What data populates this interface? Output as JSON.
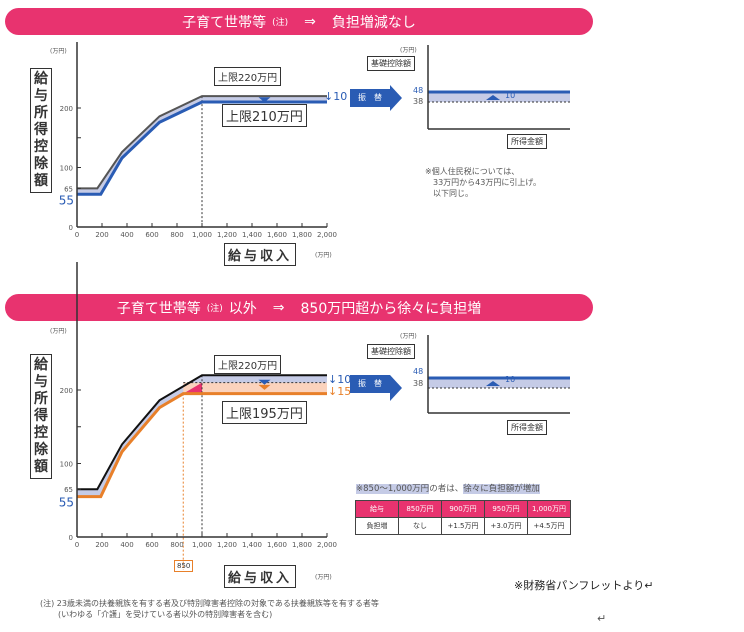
{
  "banner1": {
    "title": "子育て世帯等",
    "note": "(注)",
    "arrow": "⇒",
    "result": "負担増減なし"
  },
  "banner2": {
    "title": "子育て世帯等",
    "note": "(注)",
    "suffix": "以外",
    "arrow": "⇒",
    "result": "850万円超から徐々に負担増"
  },
  "common": {
    "y_label": "給与所得控除額",
    "x_label": "給与収入",
    "unit": "(万円)",
    "swap": "振　替",
    "basic_label": "基礎控除額",
    "income_label": "所得金額",
    "basic_new": "48",
    "basic_old": "38",
    "basic_diff": "10"
  },
  "chart_data": [
    {
      "type": "line",
      "title": "子育て世帯等",
      "xlabel": "給与収入",
      "ylabel": "給与所得控除額",
      "xlim": [
        0,
        2000
      ],
      "ylim": [
        0,
        250
      ],
      "x_ticks": [
        "0",
        "200",
        "400",
        "600",
        "800",
        "1,000",
        "1,200",
        "1,400",
        "1,600",
        "1,800",
        "2,000"
      ],
      "y_ticks": [
        "0",
        "65",
        "100",
        "200"
      ],
      "y_new_start": "55",
      "series": [
        {
          "name": "old",
          "color": "#555555",
          "points": [
            [
              0,
              65
            ],
            [
              162.5,
              65
            ],
            [
              360,
              126
            ],
            [
              660,
              186
            ],
            [
              1000,
              220
            ],
            [
              2000,
              220
            ]
          ]
        },
        {
          "name": "new",
          "color": "#2a5cb4",
          "points": [
            [
              0,
              55
            ],
            [
              190,
              55
            ],
            [
              360,
              116
            ],
            [
              660,
              176
            ],
            [
              1000,
              210
            ],
            [
              2000,
              210
            ]
          ]
        }
      ],
      "labels": {
        "cap_old": "上限220万円",
        "cap_new": "上限210万円",
        "diff": "10"
      }
    },
    {
      "type": "line",
      "title": "子育て世帯等以外",
      "xlabel": "給与収入",
      "ylabel": "給与所得控除額",
      "xlim": [
        0,
        2000
      ],
      "ylim": [
        0,
        250
      ],
      "x_ticks": [
        "0",
        "200",
        "400",
        "600",
        "800",
        "1,000",
        "1,200",
        "1,400",
        "1,600",
        "1,800",
        "2,000"
      ],
      "y_ticks": [
        "0",
        "65",
        "100",
        "200"
      ],
      "y_new_start": "55",
      "series": [
        {
          "name": "old",
          "color": "#111111",
          "points": [
            [
              0,
              65
            ],
            [
              162.5,
              65
            ],
            [
              360,
              126
            ],
            [
              660,
              186
            ],
            [
              1000,
              220
            ],
            [
              2000,
              220
            ]
          ]
        },
        {
          "name": "new",
          "color": "#e8802a",
          "points": [
            [
              0,
              55
            ],
            [
              190,
              55
            ],
            [
              360,
              116
            ],
            [
              660,
              176
            ],
            [
              850,
              195
            ],
            [
              2000,
              195
            ]
          ]
        }
      ],
      "labels": {
        "cap_old": "上限220万円",
        "cap_new": "上限195万円",
        "diff1": "10",
        "diff2": "15",
        "marker": "850"
      }
    }
  ],
  "side_note1": [
    "※個人住民税については、",
    "33万円から43万円に引上げ。",
    "以下同じ。"
  ],
  "table": {
    "caption_a": "※850〜1,000万円",
    "caption_b": "の者は、",
    "caption_c": "徐々に負担額が増加",
    "header": [
      "給与",
      "850万円",
      "900万円",
      "950万円",
      "1,000万円"
    ],
    "row": [
      "負担増",
      "なし",
      "+1.5万円",
      "+3.0万円",
      "+4.5万円"
    ]
  },
  "footnote": [
    "(注) 23歳未満の扶養親族を有する者及び特別障害者控除の対象である扶養親族等を有する者等",
    "(いわゆる「介護」を受けている者以外の特別障害者を含む)"
  ],
  "source": "※財務省パンフレットより↵",
  "return_mark": "↵"
}
